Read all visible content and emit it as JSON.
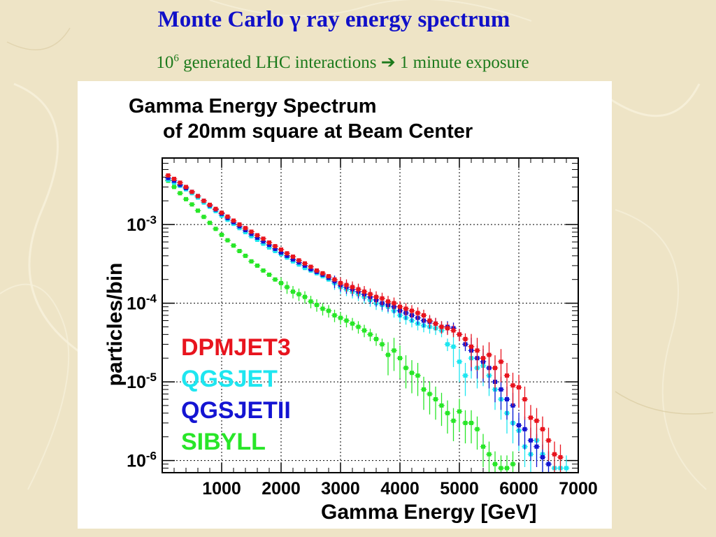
{
  "slide": {
    "title": "Monte Carlo γ ray energy spectrum",
    "subtitle_base": "10",
    "subtitle_exp": "6",
    "subtitle_rest": " generated LHC interactions",
    "subtitle_arrow": "➔",
    "subtitle_tail": " 1 minute exposure",
    "colors": {
      "title": "#1010c8",
      "subtitle": "#1c7a1c",
      "background": "#eee4c6"
    }
  },
  "chart_data": {
    "type": "scatter",
    "title_line1": "Gamma Energy Spectrum",
    "title_line2": "of 20mm square at Beam Center",
    "xlabel": "Gamma Energy [GeV]",
    "ylabel": "particles/bin",
    "xlim": [
      0,
      7000
    ],
    "ylim": [
      7e-07,
      0.007
    ],
    "y_scale": "log",
    "grid": true,
    "x_ticks": [
      1000,
      2000,
      3000,
      4000,
      5000,
      6000,
      7000
    ],
    "x_tick_labels": [
      "1000",
      "2000",
      "3000",
      "4000",
      "5000",
      "6000",
      "7000"
    ],
    "y_ticks": [
      0.001,
      0.0001,
      1e-05,
      1e-06
    ],
    "y_tick_labels": [
      {
        "base": "10",
        "exp": "-3"
      },
      {
        "base": "10",
        "exp": "-4"
      },
      {
        "base": "10",
        "exp": "-5"
      },
      {
        "base": "10",
        "exp": "-6"
      }
    ],
    "legend_placement": "lower-left",
    "series": [
      {
        "name": "DPMJET3",
        "color": "#e8141e",
        "points": [
          [
            100,
            0.0042
          ],
          [
            200,
            0.0038
          ],
          [
            300,
            0.0034
          ],
          [
            400,
            0.003
          ],
          [
            500,
            0.0026
          ],
          [
            600,
            0.0023
          ],
          [
            700,
            0.002
          ],
          [
            800,
            0.00178
          ],
          [
            900,
            0.00158
          ],
          [
            1000,
            0.00141
          ],
          [
            1100,
            0.00126
          ],
          [
            1200,
            0.00112
          ],
          [
            1300,
            0.001
          ],
          [
            1400,
            0.0009
          ],
          [
            1500,
            0.00081
          ],
          [
            1600,
            0.00073
          ],
          [
            1700,
            0.00066
          ],
          [
            1800,
            0.00059
          ],
          [
            1900,
            0.00053
          ],
          [
            2000,
            0.00048
          ],
          [
            2100,
            0.00043
          ],
          [
            2200,
            0.00039
          ],
          [
            2300,
            0.00035
          ],
          [
            2400,
            0.00032
          ],
          [
            2500,
            0.00029
          ],
          [
            2600,
            0.00026
          ],
          [
            2700,
            0.00024
          ],
          [
            2800,
            0.00022
          ],
          [
            2900,
            0.0002
          ],
          [
            3000,
            0.00018
          ],
          [
            3100,
            0.00017
          ],
          [
            3200,
            0.00016
          ],
          [
            3300,
            0.00015
          ],
          [
            3400,
            0.00014
          ],
          [
            3500,
            0.00013
          ],
          [
            3600,
            0.00012
          ],
          [
            3700,
            0.000115
          ],
          [
            3800,
            0.000105
          ],
          [
            3900,
            0.0001
          ],
          [
            4000,
            9e-05
          ],
          [
            4100,
            8.5e-05
          ],
          [
            4200,
            8e-05
          ],
          [
            4300,
            7.5e-05
          ],
          [
            4400,
            7e-05
          ],
          [
            4500,
            6e-05
          ],
          [
            4600,
            5.5e-05
          ],
          [
            4700,
            5e-05
          ],
          [
            4800,
            4.8e-05
          ],
          [
            4900,
            4.5e-05
          ],
          [
            5000,
            4e-05
          ],
          [
            5100,
            3.5e-05
          ],
          [
            5200,
            2.8e-05
          ],
          [
            5300,
            2.5e-05
          ],
          [
            5400,
            2e-05
          ],
          [
            5500,
            2.2e-05
          ],
          [
            5600,
            1.5e-05
          ],
          [
            5700,
            1.8e-05
          ],
          [
            5800,
            1.2e-05
          ],
          [
            5900,
            9e-06
          ],
          [
            6000,
            8.5e-06
          ],
          [
            6100,
            6e-06
          ],
          [
            6200,
            3.5e-06
          ],
          [
            6300,
            3.2e-06
          ],
          [
            6400,
            2.5e-06
          ],
          [
            6500,
            1.8e-06
          ],
          [
            6600,
            1.2e-06
          ],
          [
            6700,
            1.1e-06
          ]
        ]
      },
      {
        "name": "QGSJET",
        "color": "#1ee6f0",
        "points": [
          [
            100,
            0.0037
          ],
          [
            200,
            0.0034
          ],
          [
            300,
            0.0031
          ],
          [
            400,
            0.0028
          ],
          [
            500,
            0.0025
          ],
          [
            600,
            0.0022
          ],
          [
            700,
            0.0019
          ],
          [
            800,
            0.00168
          ],
          [
            900,
            0.00148
          ],
          [
            1000,
            0.0013
          ],
          [
            1100,
            0.00115
          ],
          [
            1200,
            0.00102
          ],
          [
            1300,
            0.0009
          ],
          [
            1400,
            0.0008
          ],
          [
            1500,
            0.00071
          ],
          [
            1600,
            0.00064
          ],
          [
            1700,
            0.00057
          ],
          [
            1800,
            0.00051
          ],
          [
            1900,
            0.00046
          ],
          [
            2000,
            0.00042
          ],
          [
            2100,
            0.00038
          ],
          [
            2200,
            0.00034
          ],
          [
            2300,
            0.00031
          ],
          [
            2400,
            0.00028
          ],
          [
            2500,
            0.00026
          ],
          [
            2600,
            0.00024
          ],
          [
            2700,
            0.00022
          ],
          [
            2800,
            0.0002
          ],
          [
            2900,
            0.00018
          ],
          [
            3000,
            0.00016
          ],
          [
            3100,
            0.00015
          ],
          [
            3200,
            0.00014
          ],
          [
            3300,
            0.00013
          ],
          [
            3400,
            0.00012
          ],
          [
            3500,
            0.00011
          ],
          [
            3600,
            0.0001
          ],
          [
            3700,
            9.5e-05
          ],
          [
            3800,
            9e-05
          ],
          [
            3900,
            8e-05
          ],
          [
            4000,
            7e-05
          ],
          [
            4100,
            6.5e-05
          ],
          [
            4200,
            6e-05
          ],
          [
            4300,
            5.5e-05
          ],
          [
            4400,
            5.2e-05
          ],
          [
            4500,
            5e-05
          ],
          [
            4600,
            4.8e-05
          ],
          [
            4700,
            4.5e-05
          ],
          [
            4800,
            3e-05
          ],
          [
            4900,
            2.8e-05
          ],
          [
            5000,
            1.8e-05
          ],
          [
            5100,
            1.2e-05
          ],
          [
            5200,
            2e-05
          ],
          [
            5300,
            1.5e-05
          ],
          [
            5400,
            1.6e-05
          ],
          [
            5500,
            1.2e-05
          ],
          [
            5600,
            8e-06
          ],
          [
            5700,
            6e-06
          ],
          [
            5800,
            4e-06
          ],
          [
            5900,
            3e-06
          ],
          [
            6000,
            2.4e-06
          ],
          [
            6100,
            1.5e-06
          ],
          [
            6200,
            1.2e-06
          ],
          [
            6300,
            1.8e-06
          ],
          [
            6400,
            1.2e-06
          ],
          [
            6500,
            9e-07
          ],
          [
            6600,
            8e-07
          ],
          [
            6700,
            8e-07
          ],
          [
            6800,
            8e-07
          ]
        ]
      },
      {
        "name": "QGSJETII",
        "color": "#1414d2",
        "points": [
          [
            100,
            0.0039
          ],
          [
            200,
            0.0036
          ],
          [
            300,
            0.0032
          ],
          [
            400,
            0.0029
          ],
          [
            500,
            0.0026
          ],
          [
            600,
            0.0023
          ],
          [
            700,
            0.002
          ],
          [
            800,
            0.00175
          ],
          [
            900,
            0.00155
          ],
          [
            1000,
            0.00137
          ],
          [
            1100,
            0.00121
          ],
          [
            1200,
            0.00107
          ],
          [
            1300,
            0.00095
          ],
          [
            1400,
            0.00085
          ],
          [
            1500,
            0.00076
          ],
          [
            1600,
            0.00068
          ],
          [
            1700,
            0.00061
          ],
          [
            1800,
            0.00055
          ],
          [
            1900,
            0.00049
          ],
          [
            2000,
            0.00044
          ],
          [
            2100,
            0.0004
          ],
          [
            2200,
            0.00036
          ],
          [
            2300,
            0.00033
          ],
          [
            2400,
            0.0003
          ],
          [
            2500,
            0.00027
          ],
          [
            2600,
            0.00025
          ],
          [
            2700,
            0.00023
          ],
          [
            2800,
            0.00021
          ],
          [
            2900,
            0.00019
          ],
          [
            3000,
            0.00017
          ],
          [
            3100,
            0.00016
          ],
          [
            3200,
            0.00015
          ],
          [
            3300,
            0.00014
          ],
          [
            3400,
            0.00013
          ],
          [
            3500,
            0.00012
          ],
          [
            3600,
            0.00011
          ],
          [
            3700,
            0.0001
          ],
          [
            3800,
            9.5e-05
          ],
          [
            3900,
            9e-05
          ],
          [
            4000,
            8e-05
          ],
          [
            4100,
            7.5e-05
          ],
          [
            4200,
            7e-05
          ],
          [
            4300,
            6.5e-05
          ],
          [
            4400,
            6e-05
          ],
          [
            4500,
            5.8e-05
          ],
          [
            4600,
            5.5e-05
          ],
          [
            4700,
            5e-05
          ],
          [
            4800,
            5e-05
          ],
          [
            4900,
            4.8e-05
          ],
          [
            5000,
            4e-05
          ],
          [
            5100,
            3e-05
          ],
          [
            5200,
            2.5e-05
          ],
          [
            5300,
            2e-05
          ],
          [
            5400,
            1.8e-05
          ],
          [
            5500,
            1.5e-05
          ],
          [
            5600,
            1e-05
          ],
          [
            5700,
            8e-06
          ],
          [
            5800,
            6e-06
          ],
          [
            5900,
            5e-06
          ],
          [
            6000,
            2.8e-06
          ],
          [
            6100,
            2.5e-06
          ],
          [
            6200,
            1.8e-06
          ],
          [
            6300,
            1.5e-06
          ],
          [
            6400,
            1.1e-06
          ],
          [
            6500,
            9e-07
          ]
        ]
      },
      {
        "name": "SIBYLL",
        "color": "#28e628",
        "points": [
          [
            100,
            0.0036
          ],
          [
            200,
            0.003
          ],
          [
            300,
            0.0025
          ],
          [
            400,
            0.0021
          ],
          [
            500,
            0.0018
          ],
          [
            600,
            0.0015
          ],
          [
            700,
            0.00125
          ],
          [
            800,
            0.00105
          ],
          [
            900,
            0.00088
          ],
          [
            1000,
            0.00074
          ],
          [
            1100,
            0.00063
          ],
          [
            1200,
            0.00054
          ],
          [
            1300,
            0.00046
          ],
          [
            1400,
            0.0004
          ],
          [
            1500,
            0.00034
          ],
          [
            1600,
            0.0003
          ],
          [
            1700,
            0.00026
          ],
          [
            1800,
            0.00023
          ],
          [
            1900,
            0.0002
          ],
          [
            2000,
            0.00018
          ],
          [
            2100,
            0.00016
          ],
          [
            2200,
            0.00014
          ],
          [
            2300,
            0.00013
          ],
          [
            2400,
            0.00012
          ],
          [
            2500,
            0.000105
          ],
          [
            2600,
            9.5e-05
          ],
          [
            2700,
            8.5e-05
          ],
          [
            2800,
            8e-05
          ],
          [
            2900,
            7e-05
          ],
          [
            3000,
            6.5e-05
          ],
          [
            3100,
            6e-05
          ],
          [
            3200,
            5.5e-05
          ],
          [
            3300,
            5e-05
          ],
          [
            3400,
            4.5e-05
          ],
          [
            3500,
            4e-05
          ],
          [
            3600,
            3.5e-05
          ],
          [
            3700,
            3e-05
          ],
          [
            3800,
            2.2e-05
          ],
          [
            3900,
            2.5e-05
          ],
          [
            4000,
            2e-05
          ],
          [
            4100,
            1.5e-05
          ],
          [
            4200,
            1.3e-05
          ],
          [
            4300,
            1.2e-05
          ],
          [
            4400,
            8e-06
          ],
          [
            4500,
            7e-06
          ],
          [
            4600,
            6e-06
          ],
          [
            4700,
            5e-06
          ],
          [
            4800,
            4e-06
          ],
          [
            4900,
            3.2e-06
          ],
          [
            5000,
            4.2e-06
          ],
          [
            5100,
            3e-06
          ],
          [
            5200,
            3e-06
          ],
          [
            5300,
            2.5e-06
          ],
          [
            5400,
            1.5e-06
          ],
          [
            5500,
            1.2e-06
          ],
          [
            5600,
            9e-07
          ],
          [
            5700,
            8e-07
          ],
          [
            5800,
            8e-07
          ],
          [
            5900,
            9e-07
          ]
        ]
      }
    ]
  }
}
